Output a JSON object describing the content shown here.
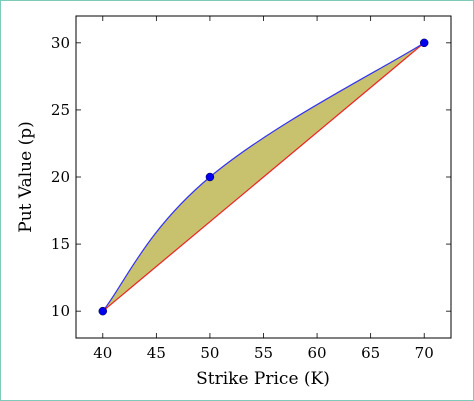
{
  "chart_data": {
    "type": "area",
    "title": "",
    "xlabel": "Strike Price (K)",
    "ylabel": "Put Value (p)",
    "xlim": [
      37.5,
      72.5
    ],
    "ylim": [
      8,
      32
    ],
    "xticks": [
      40,
      45,
      50,
      55,
      60,
      65,
      70
    ],
    "yticks": [
      10,
      15,
      20,
      25,
      30
    ],
    "grid": false,
    "series": [
      {
        "color": "#3333ee",
        "marker": true,
        "x": [
          40,
          50,
          70
        ],
        "y": [
          10,
          20,
          30
        ]
      },
      {
        "color": "#ee2222",
        "marker": false,
        "x": [
          40,
          70
        ],
        "y": [
          10,
          30
        ]
      }
    ],
    "fill_color": "#c8c26e",
    "marker_color": "#0000ee"
  }
}
